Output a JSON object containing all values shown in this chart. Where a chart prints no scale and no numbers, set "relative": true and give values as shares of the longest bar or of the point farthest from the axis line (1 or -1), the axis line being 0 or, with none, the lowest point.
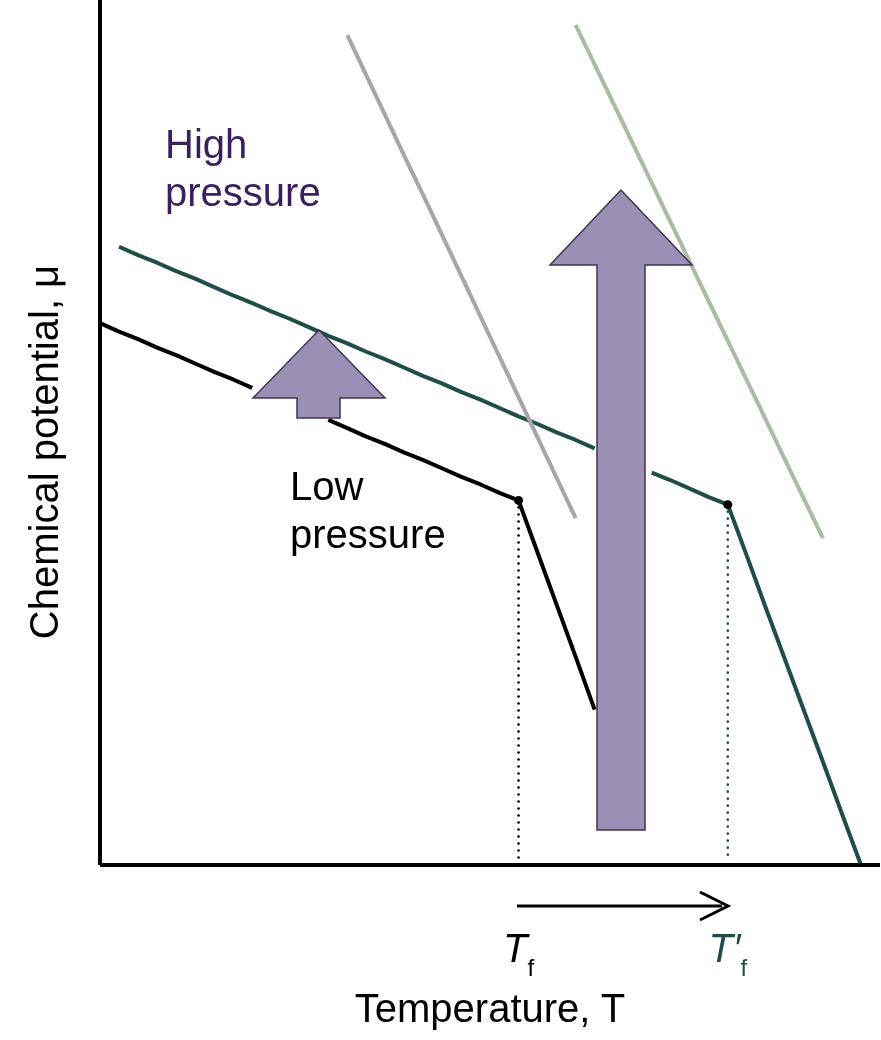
{
  "chart_data": {
    "type": "line",
    "xlabel": "Temperature, T",
    "ylabel": "Chemical potential, μ",
    "relative": true,
    "annotations": [
      "T$_{f}$",
      "T′$_{f}$"
    ],
    "categories": [
      null,
      null,
      null,
      null,
      null,
      null,
      null,
      null,
      null,
      null,
      null,
      null,
      null,
      null,
      null,
      null,
      null,
      null,
      null,
      null,
      null,
      null,
      null,
      null,
      null,
      null,
      null,
      null,
      null,
      null,
      null,
      null,
      null,
      null,
      null,
      null,
      null,
      null,
      null,
      null,
      null,
      null
    ],
    "series": [
      {
        "name": "Low pressure",
        "color": "#000000",
        "values": [
          0.645,
          0.635,
          0.626,
          0.616,
          0.607,
          0.597,
          0.587,
          0.578,
          0.568,
          null,
          null,
          null,
          0.53,
          0.52,
          0.51,
          0.501,
          0.491,
          0.482,
          0.472,
          0.462,
          0.453,
          0.443,
          0.434,
          0.372,
          0.31,
          0.248,
          0.185,
          null,
          null,
          null,
          null,
          null,
          null,
          null,
          null,
          null,
          null,
          null,
          null,
          null,
          null,
          null
        ]
      },
      {
        "name": "High pressure",
        "color": "#1f4e4a",
        "values": [
          null,
          0.736,
          0.726,
          0.717,
          0.707,
          0.698,
          0.688,
          0.678,
          0.669,
          0.659,
          0.65,
          0.64,
          0.63,
          0.621,
          0.611,
          0.602,
          0.592,
          0.582,
          0.573,
          0.563,
          0.554,
          0.544,
          0.534,
          0.525,
          0.515,
          0.506,
          0.496,
          null,
          null,
          0.467,
          0.458,
          0.448,
          0.438,
          0.429,
          0.368,
          0.306,
          0.245,
          0.184,
          0.123,
          0.061,
          0,
          null
        ]
      },
      {
        "color": "#a6a6a6",
        "values": [
          null,
          null,
          null,
          null,
          null,
          null,
          null,
          null,
          null,
          null,
          null,
          null,
          null,
          0.988,
          0.94,
          0.892,
          0.844,
          0.797,
          0.749,
          0.701,
          0.653,
          0.605,
          0.557,
          0.509,
          0.461,
          0.413,
          null,
          null,
          null,
          null,
          null,
          null,
          null,
          null,
          null,
          null,
          null,
          null,
          null,
          null,
          null,
          null
        ]
      },
      {
        "color": "#a9bba5",
        "values": [
          null,
          null,
          null,
          null,
          null,
          null,
          null,
          null,
          null,
          null,
          null,
          null,
          null,
          null,
          null,
          null,
          null,
          null,
          null,
          null,
          null,
          null,
          null,
          null,
          null,
          1,
          0.953,
          0.906,
          0.859,
          0.812,
          0.765,
          0.718,
          0.671,
          0.624,
          0.577,
          0.53,
          0.483,
          0.436,
          0.389,
          null,
          null,
          null
        ]
      }
    ]
  }
}
